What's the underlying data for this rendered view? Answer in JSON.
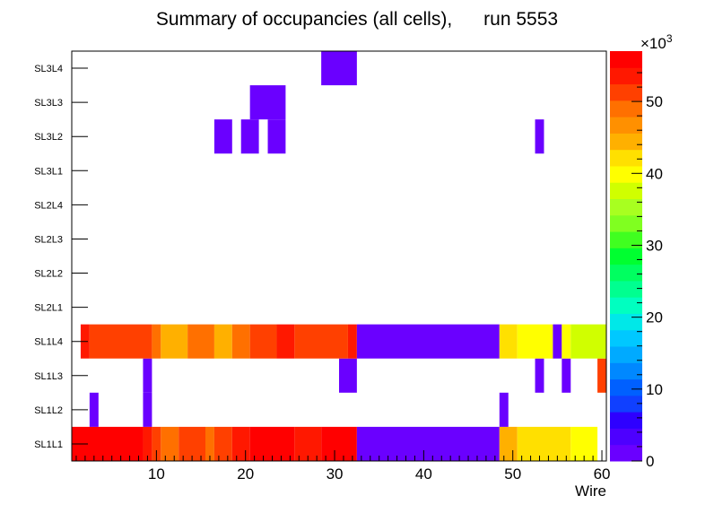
{
  "chart_data": {
    "type": "heatmap",
    "title": "Summary of occupancies (all cells),      run 5553",
    "xlabel": "Wire",
    "ylabel": "",
    "xlim": [
      0.5,
      60.5
    ],
    "x_ticks": [
      10,
      20,
      30,
      40,
      50,
      60
    ],
    "rows": [
      "SL1L1",
      "SL1L2",
      "SL1L3",
      "SL1L4",
      "SL2L1",
      "SL2L2",
      "SL2L3",
      "SL2L4",
      "SL3L1",
      "SL3L2",
      "SL3L3",
      "SL3L4"
    ],
    "zlim": [
      0,
      57
    ],
    "z_ticks": [
      0,
      10,
      20,
      30,
      40,
      50
    ],
    "z_multiplier": "×10",
    "z_exponent": "3",
    "palette": [
      "#6a00ff",
      "#4d00ff",
      "#2e00ff",
      "#1040ff",
      "#0060ff",
      "#0088ff",
      "#00aaff",
      "#00c8ff",
      "#00e8e8",
      "#00ffc0",
      "#00ff90",
      "#00ff60",
      "#00ff30",
      "#40ff20",
      "#80ff20",
      "#a8ff20",
      "#d0ff00",
      "#ffff00",
      "#ffe000",
      "#ffb000",
      "#ff9000",
      "#ff7000",
      "#ff4000",
      "#ff1800",
      "#ff0000"
    ],
    "series": [
      {
        "name": "SL1L1",
        "segments": [
          {
            "from": 1,
            "to": 8,
            "value": 55
          },
          {
            "from": 9,
            "to": 9,
            "value": 53
          },
          {
            "from": 10,
            "to": 10,
            "value": 51
          },
          {
            "from": 11,
            "to": 12,
            "value": 49
          },
          {
            "from": 13,
            "to": 15,
            "value": 51
          },
          {
            "from": 16,
            "to": 16,
            "value": 48
          },
          {
            "from": 17,
            "to": 18,
            "value": 51
          },
          {
            "from": 19,
            "to": 20,
            "value": 53
          },
          {
            "from": 21,
            "to": 25,
            "value": 55
          },
          {
            "from": 26,
            "to": 28,
            "value": 53
          },
          {
            "from": 29,
            "to": 32,
            "value": 55
          },
          {
            "from": 33,
            "to": 48,
            "value": 1
          },
          {
            "from": 49,
            "to": 50,
            "value": 45
          },
          {
            "from": 51,
            "to": 56,
            "value": 42
          },
          {
            "from": 57,
            "to": 59,
            "value": 39
          }
        ]
      },
      {
        "name": "SL1L2",
        "segments": [
          {
            "from": 3,
            "to": 3,
            "value": 1
          },
          {
            "from": 9,
            "to": 9,
            "value": 1
          },
          {
            "from": 49,
            "to": 49,
            "value": 1
          }
        ]
      },
      {
        "name": "SL1L3",
        "segments": [
          {
            "from": 9,
            "to": 9,
            "value": 1
          },
          {
            "from": 31,
            "to": 32,
            "value": 1
          },
          {
            "from": 53,
            "to": 53,
            "value": 1
          },
          {
            "from": 56,
            "to": 56,
            "value": 1
          },
          {
            "from": 60,
            "to": 60,
            "value": 51
          }
        ]
      },
      {
        "name": "SL1L4",
        "segments": [
          {
            "from": 2,
            "to": 2,
            "value": 54
          },
          {
            "from": 3,
            "to": 9,
            "value": 51
          },
          {
            "from": 10,
            "to": 10,
            "value": 49
          },
          {
            "from": 11,
            "to": 13,
            "value": 45
          },
          {
            "from": 14,
            "to": 16,
            "value": 49
          },
          {
            "from": 17,
            "to": 18,
            "value": 45
          },
          {
            "from": 19,
            "to": 20,
            "value": 48
          },
          {
            "from": 21,
            "to": 23,
            "value": 51
          },
          {
            "from": 24,
            "to": 25,
            "value": 53
          },
          {
            "from": 26,
            "to": 31,
            "value": 51
          },
          {
            "from": 32,
            "to": 32,
            "value": 53
          },
          {
            "from": 33,
            "to": 48,
            "value": 1
          },
          {
            "from": 49,
            "to": 50,
            "value": 43
          },
          {
            "from": 51,
            "to": 54,
            "value": 39
          },
          {
            "from": 55,
            "to": 55,
            "value": 1
          },
          {
            "from": 56,
            "to": 56,
            "value": 39
          },
          {
            "from": 57,
            "to": 60,
            "value": 37
          }
        ]
      },
      {
        "name": "SL2L1",
        "segments": []
      },
      {
        "name": "SL2L2",
        "segments": []
      },
      {
        "name": "SL2L3",
        "segments": []
      },
      {
        "name": "SL2L4",
        "segments": []
      },
      {
        "name": "SL3L1",
        "segments": []
      },
      {
        "name": "SL3L2",
        "segments": [
          {
            "from": 17,
            "to": 18,
            "value": 1
          },
          {
            "from": 20,
            "to": 21,
            "value": 1
          },
          {
            "from": 23,
            "to": 24,
            "value": 1
          },
          {
            "from": 53,
            "to": 53,
            "value": 1
          }
        ]
      },
      {
        "name": "SL3L3",
        "segments": [
          {
            "from": 21,
            "to": 24,
            "value": 1
          }
        ]
      },
      {
        "name": "SL3L4",
        "segments": [
          {
            "from": 29,
            "to": 32,
            "value": 1
          }
        ]
      }
    ]
  }
}
